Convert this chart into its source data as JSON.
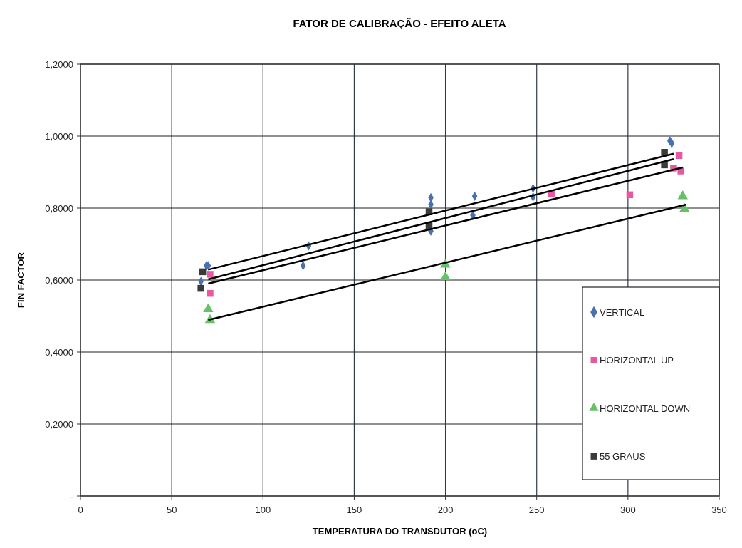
{
  "chart_data": {
    "type": "scatter",
    "title": "FATOR DE CALIBRAÇÃO - EFEITO ALETA",
    "xlabel": "TEMPERATURA DO TRANSDUTOR (oC)",
    "ylabel": "FIN FACTOR",
    "xlim": [
      0,
      350
    ],
    "xticks": [
      0,
      50,
      100,
      150,
      200,
      250,
      300,
      350
    ],
    "ylim": [
      0,
      1.2
    ],
    "yticks": [
      {
        "value": 0,
        "label": "-"
      },
      {
        "value": 0.2,
        "label": "0,2000"
      },
      {
        "value": 0.4,
        "label": "0,4000"
      },
      {
        "value": 0.6,
        "label": "0,6000"
      },
      {
        "value": 0.8,
        "label": "0,8000"
      },
      {
        "value": 1.0,
        "label": "1,0000"
      },
      {
        "value": 1.2,
        "label": "1,2000"
      }
    ],
    "grid": true,
    "legend": "right",
    "series": [
      {
        "name": "VERTICAL",
        "color": "#4a70b0",
        "marker": "diamond",
        "x": [
          66,
          69,
          70,
          122,
          125,
          192,
          192,
          192,
          216,
          215,
          248,
          248,
          323,
          324
        ],
        "values": [
          0.596,
          0.64,
          0.64,
          0.64,
          0.695,
          0.829,
          0.81,
          0.736,
          0.833,
          0.78,
          0.855,
          0.831,
          0.987,
          0.98
        ]
      },
      {
        "name": "HORIZONTAL UP",
        "color": "#e8589e",
        "marker": "square",
        "x": [
          71,
          71,
          258,
          301,
          328,
          325,
          329
        ],
        "values": [
          0.616,
          0.563,
          0.839,
          0.837,
          0.946,
          0.911,
          0.903
        ]
      },
      {
        "name": "HORIZONTAL DOWN",
        "color": "#66c266",
        "marker": "triangle",
        "x": [
          70,
          71,
          200,
          200,
          330,
          331
        ],
        "values": [
          0.519,
          0.489,
          0.643,
          0.608,
          0.833,
          0.798
        ]
      },
      {
        "name": "55 GRAUS",
        "color": "#3a3a3a",
        "marker": "square",
        "x": [
          67,
          66,
          191,
          191,
          320,
          320
        ],
        "values": [
          0.623,
          0.577,
          0.79,
          0.751,
          0.955,
          0.92
        ]
      },
      {
        "type": "line",
        "color": "#000000",
        "marker": "none",
        "x": [
          70,
          325
        ],
        "values": [
          0.629,
          0.951
        ]
      },
      {
        "type": "line",
        "color": "#000000",
        "marker": "none",
        "x": [
          70,
          325
        ],
        "values": [
          0.602,
          0.936
        ]
      },
      {
        "type": "line",
        "color": "#000000",
        "marker": "none",
        "x": [
          70,
          330
        ],
        "values": [
          0.59,
          0.913
        ]
      },
      {
        "type": "line",
        "color": "#000000",
        "marker": "none",
        "x": [
          70,
          332
        ],
        "values": [
          0.489,
          0.81
        ]
      }
    ]
  }
}
